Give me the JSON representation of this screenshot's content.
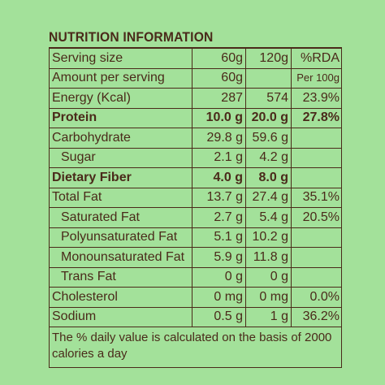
{
  "label": {
    "title": "NUTRITION INFORMATION",
    "header": {
      "serving_size": "Serving size",
      "col60": "60g",
      "col120": "120g",
      "rda": "%RDA"
    },
    "amount_row": {
      "label": "Amount per serving",
      "value": "60g",
      "rda_note": "Per 100g"
    },
    "rows": [
      {
        "name": "Energy (Kcal)",
        "v60": "287",
        "v120": "574",
        "rda": "23.9%",
        "bold": false,
        "indent": false
      },
      {
        "name": "Protein",
        "v60": "10.0 g",
        "v120": "20.0 g",
        "rda": "27.8%",
        "bold": true,
        "indent": false
      },
      {
        "name": "Carbohydrate",
        "v60": "29.8 g",
        "v120": "59.6 g",
        "rda": "",
        "bold": false,
        "indent": false
      },
      {
        "name": "Sugar",
        "v60": "2.1 g",
        "v120": "4.2 g",
        "rda": "",
        "bold": false,
        "indent": true
      },
      {
        "name": "Dietary Fiber",
        "v60": "4.0 g",
        "v120": "8.0 g",
        "rda": "",
        "bold": true,
        "indent": false
      },
      {
        "name": "Total Fat",
        "v60": "13.7 g",
        "v120": "27.4 g",
        "rda": "35.1%",
        "bold": false,
        "indent": false
      },
      {
        "name": "Saturated Fat",
        "v60": "2.7 g",
        "v120": "5.4 g",
        "rda": "20.5%",
        "bold": false,
        "indent": true
      },
      {
        "name": "Polyunsaturated Fat",
        "v60": "5.1 g",
        "v120": "10.2 g",
        "rda": "",
        "bold": false,
        "indent": true
      },
      {
        "name": "Monounsaturated Fat",
        "v60": "5.9 g",
        "v120": "11.8 g",
        "rda": "",
        "bold": false,
        "indent": true
      },
      {
        "name": "Trans Fat",
        "v60": "0 g",
        "v120": "0 g",
        "rda": "",
        "bold": false,
        "indent": true
      },
      {
        "name": "Cholesterol",
        "v60": "0 mg",
        "v120": "0 mg",
        "rda": "0.0%",
        "bold": false,
        "indent": false
      },
      {
        "name": "Sodium",
        "v60": "0.5 g",
        "v120": "1 g",
        "rda": "36.2%",
        "bold": false,
        "indent": false
      }
    ],
    "footnote": "The % daily value is calculated on the basis of 2000 calories a day"
  },
  "colors": {
    "background": "#a3e19a",
    "text": "#4a2a1a"
  }
}
